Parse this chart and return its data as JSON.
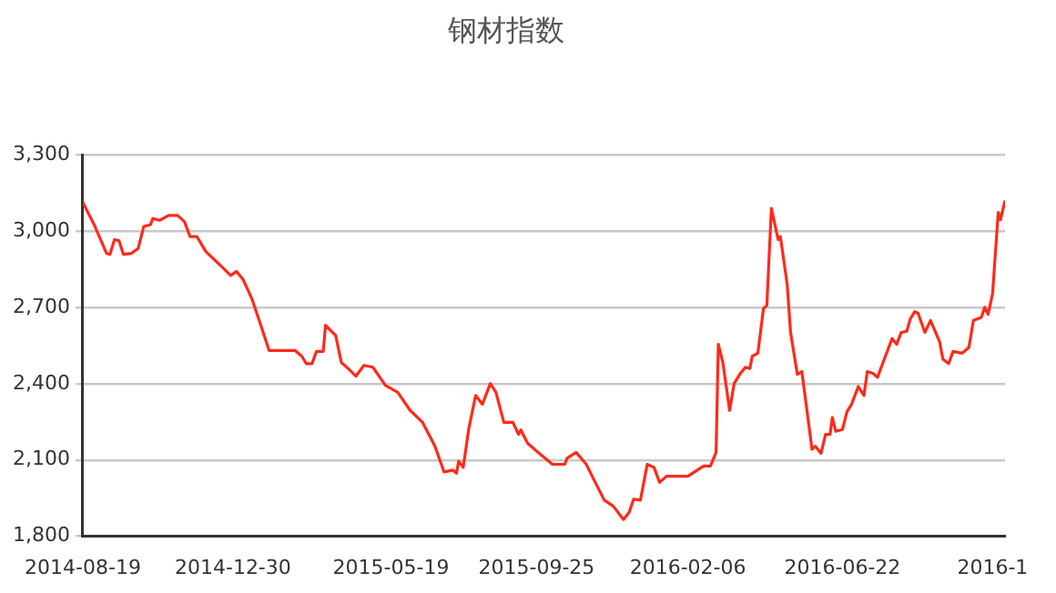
{
  "chart_data": {
    "type": "line",
    "title": "钢材指数",
    "x": [
      "2014-08-19",
      "2014-08-29",
      "2014-09-09",
      "2014-09-12",
      "2014-09-16",
      "2014-09-20",
      "2014-09-24",
      "2014-10-01",
      "2014-10-07",
      "2014-10-12",
      "2014-10-18",
      "2014-10-20",
      "2014-10-26",
      "2014-11-03",
      "2014-11-11",
      "2014-11-17",
      "2014-11-22",
      "2014-11-28",
      "2014-12-06",
      "2014-12-20",
      "2014-12-28",
      "2015-01-02",
      "2015-01-08",
      "2015-01-16",
      "2015-01-24",
      "2015-01-31",
      "2015-02-23",
      "2015-03-01",
      "2015-03-05",
      "2015-03-10",
      "2015-03-14",
      "2015-03-20",
      "2015-03-22",
      "2015-03-31",
      "2015-04-05",
      "2015-04-11",
      "2015-04-18",
      "2015-04-25",
      "2015-05-03",
      "2015-05-14",
      "2015-05-25",
      "2015-06-05",
      "2015-06-16",
      "2015-06-27",
      "2015-07-05",
      "2015-07-13",
      "2015-07-16",
      "2015-07-18",
      "2015-07-22",
      "2015-07-27",
      "2015-08-02",
      "2015-08-08",
      "2015-08-15",
      "2015-08-20",
      "2015-08-27",
      "2015-09-04",
      "2015-09-09",
      "2015-09-11",
      "2015-09-17",
      "2015-09-25",
      "2015-10-09",
      "2015-10-20",
      "2015-10-22",
      "2015-10-30",
      "2015-11-08",
      "2015-11-16",
      "2015-11-24",
      "2015-12-02",
      "2015-12-11",
      "2015-12-16",
      "2015-12-20",
      "2015-12-26",
      "2016-01-01",
      "2016-01-07",
      "2016-01-12",
      "2016-01-18",
      "2016-02-06",
      "2016-02-20",
      "2016-02-26",
      "2016-03-02",
      "2016-03-04",
      "2016-03-08",
      "2016-03-14",
      "2016-03-18",
      "2016-03-23",
      "2016-03-28",
      "2016-04-01",
      "2016-04-03",
      "2016-04-08",
      "2016-04-13",
      "2016-04-16",
      "2016-04-20",
      "2016-04-26",
      "2016-04-28",
      "2016-05-04",
      "2016-05-07",
      "2016-05-13",
      "2016-05-17",
      "2016-05-26",
      "2016-05-29",
      "2016-06-03",
      "2016-06-07",
      "2016-06-11",
      "2016-06-13",
      "2016-06-16",
      "2016-06-22",
      "2016-06-26",
      "2016-06-30",
      "2016-07-06",
      "2016-07-11",
      "2016-07-14",
      "2016-07-19",
      "2016-07-23",
      "2016-07-30",
      "2016-08-05",
      "2016-08-09",
      "2016-08-13",
      "2016-08-18",
      "2016-08-21",
      "2016-08-25",
      "2016-08-28",
      "2016-09-03",
      "2016-09-08",
      "2016-09-16",
      "2016-09-19",
      "2016-09-24",
      "2016-09-28",
      "2016-10-06",
      "2016-10-12",
      "2016-10-16",
      "2016-10-23",
      "2016-10-26",
      "2016-10-29",
      "2016-11-02",
      "2016-11-04",
      "2016-11-07",
      "2016-11-09",
      "2016-11-13"
    ],
    "series": [
      {
        "color": "#ff2a1a",
        "values": [
          3114,
          3026,
          2913,
          2909,
          2967,
          2963,
          2909,
          2913,
          2932,
          3019,
          3026,
          3050,
          3043,
          3062,
          3062,
          3038,
          2979,
          2979,
          2920,
          2861,
          2826,
          2842,
          2810,
          2732,
          2626,
          2531,
          2531,
          2508,
          2479,
          2479,
          2527,
          2527,
          2630,
          2590,
          2484,
          2460,
          2430,
          2472,
          2465,
          2394,
          2366,
          2295,
          2248,
          2154,
          2053,
          2060,
          2048,
          2095,
          2071,
          2225,
          2354,
          2319,
          2401,
          2366,
          2248,
          2248,
          2201,
          2218,
          2166,
          2135,
          2083,
          2083,
          2107,
          2130,
          2083,
          2012,
          1942,
          1918,
          1866,
          1894,
          1946,
          1942,
          2083,
          2071,
          2012,
          2036,
          2036,
          2076,
          2076,
          2130,
          2555,
          2484,
          2295,
          2401,
          2437,
          2465,
          2460,
          2508,
          2520,
          2696,
          2708,
          3090,
          2967,
          2979,
          2791,
          2602,
          2437,
          2448,
          2142,
          2154,
          2126,
          2201,
          2201,
          2267,
          2213,
          2220,
          2290,
          2319,
          2389,
          2354,
          2448,
          2441,
          2425,
          2508,
          2578,
          2555,
          2602,
          2607,
          2654,
          2684,
          2677,
          2602,
          2649,
          2566,
          2496,
          2479,
          2527,
          2520,
          2543,
          2649,
          2661,
          2701,
          2673,
          2755,
          2885,
          3074,
          3045,
          3121
        ]
      }
    ],
    "xlim": [
      "2014-08-19",
      "2016-11-13"
    ],
    "xticks": [
      "2014-08-19",
      "2014-12-30",
      "2015-05-19",
      "2015-09-25",
      "2016-02-06",
      "2016-06-22",
      {
        "value": "2016-11-02",
        "label": "2016-1"
      }
    ],
    "ylim": [
      1800,
      3300
    ],
    "yticks": [
      {
        "value": 1800,
        "label": "1,800"
      },
      {
        "value": 2100,
        "label": "2,100"
      },
      {
        "value": 2400,
        "label": "2,400"
      },
      {
        "value": 2700,
        "label": "2,700"
      },
      {
        "value": 3000,
        "label": "3,000"
      },
      {
        "value": 3300,
        "label": "3,300"
      }
    ],
    "grid": "y",
    "legend": false,
    "marker": "none",
    "line_style": "solid"
  }
}
